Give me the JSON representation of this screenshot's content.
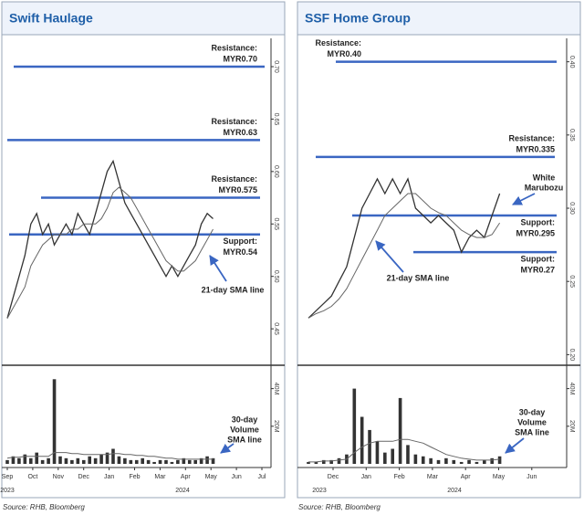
{
  "chart_data": [
    {
      "type": "line",
      "title": "Swift Haulage",
      "ylim": [
        0.417,
        0.727
      ],
      "yticks": [
        0.45,
        {
          "value": 0.5,
          "label": "0.50"
        },
        0.55,
        {
          "value": 0.6,
          "label": "0.60"
        },
        0.65,
        {
          "value": 0.7,
          "label": "0.70"
        }
      ],
      "vol_ylim": [
        0,
        50
      ],
      "vol_yticks": [
        {
          "value": 20,
          "label": "20M"
        },
        {
          "value": 40,
          "label": "40M"
        }
      ],
      "x_labels": [
        "Sep",
        "Oct",
        "Nov",
        "Dec",
        "Jan",
        "Feb",
        "Mar",
        "Apr",
        "May",
        "Jun",
        "Jul"
      ],
      "years": [
        "2023",
        "2024"
      ],
      "price": {
        "color": "#333333",
        "values": [
          0.46,
          0.48,
          0.5,
          0.52,
          0.55,
          0.56,
          0.54,
          0.55,
          0.53,
          0.54,
          0.55,
          0.54,
          0.56,
          0.55,
          0.54,
          0.56,
          0.58,
          0.6,
          0.61,
          0.59,
          0.57,
          0.56,
          0.55,
          0.54,
          0.53,
          0.52,
          0.51,
          0.5,
          0.51,
          0.5,
          0.51,
          0.52,
          0.53,
          0.55,
          0.56,
          0.555
        ]
      },
      "sma": {
        "color": "#666666",
        "values": [
          0.46,
          0.47,
          0.48,
          0.49,
          0.51,
          0.52,
          0.53,
          0.535,
          0.54,
          0.54,
          0.54,
          0.545,
          0.545,
          0.55,
          0.55,
          0.55,
          0.555,
          0.565,
          0.58,
          0.585,
          0.58,
          0.575,
          0.565,
          0.555,
          0.545,
          0.535,
          0.525,
          0.515,
          0.51,
          0.505,
          0.505,
          0.51,
          0.515,
          0.525,
          0.535,
          0.545
        ]
      },
      "volume": {
        "color": "#333333",
        "values": [
          2,
          4,
          3,
          5,
          3,
          6,
          2,
          3,
          45,
          4,
          3,
          2,
          3,
          2,
          4,
          3,
          5,
          6,
          8,
          4,
          3,
          2,
          2,
          3,
          2,
          1,
          2,
          2,
          1,
          2,
          3,
          2,
          2,
          3,
          4,
          3
        ]
      },
      "volume_sma": {
        "color": "#666666",
        "values": [
          3,
          3.5,
          3.5,
          4,
          4,
          4,
          4,
          4,
          6,
          6,
          6,
          5.5,
          5.5,
          5,
          5,
          5,
          5,
          5,
          5.5,
          5.5,
          5,
          5,
          4.5,
          4.5,
          4,
          4,
          3.5,
          3,
          3,
          2.5,
          2.5,
          2.5,
          2.5,
          2.5,
          2.5,
          2.5
        ]
      },
      "level_color": "#3a66c2",
      "levels": [
        {
          "label": "Resistance:",
          "value_label": "MYR0.70",
          "value": 0.7
        },
        {
          "label": "Resistance:",
          "value_label": "MYR0.63",
          "value": 0.63
        },
        {
          "label": "Resistance:",
          "value_label": "MYR0.575",
          "value": 0.575
        },
        {
          "label": "Support:",
          "value_label": "MYR0.54",
          "value": 0.54
        }
      ],
      "annotations": [
        {
          "lines": [
            "21-day SMA line"
          ]
        },
        {
          "lines": [
            "30-day",
            "Volume",
            "SMA line"
          ]
        }
      ],
      "source": "Source: RHB, Bloomberg"
    },
    {
      "type": "line",
      "title": "SSF Home Group",
      "ylim": [
        0.194,
        0.416
      ],
      "yticks": [
        {
          "value": 0.2,
          "label": "0.20"
        },
        0.25,
        {
          "value": 0.3,
          "label": "0.30"
        },
        0.35,
        {
          "value": 0.4,
          "label": "0.40"
        }
      ],
      "vol_ylim": [
        0,
        50
      ],
      "vol_yticks": [
        {
          "value": 20,
          "label": "20M"
        },
        {
          "value": 40,
          "label": "40M"
        }
      ],
      "x_labels": [
        "Dec",
        "Jan",
        "Feb",
        "Mar",
        "Apr",
        "May",
        "Jun"
      ],
      "years": [
        "2023",
        "2024"
      ],
      "price": {
        "color": "#333333",
        "values": [
          0.225,
          0.23,
          0.235,
          0.24,
          0.25,
          0.26,
          0.28,
          0.3,
          0.31,
          0.32,
          0.31,
          0.32,
          0.31,
          0.32,
          0.3,
          0.295,
          0.29,
          0.295,
          0.29,
          0.285,
          0.27,
          0.28,
          0.285,
          0.28,
          0.295,
          0.31
        ]
      },
      "sma": {
        "color": "#666666",
        "values": [
          0.225,
          0.228,
          0.23,
          0.233,
          0.238,
          0.245,
          0.255,
          0.265,
          0.275,
          0.285,
          0.295,
          0.3,
          0.305,
          0.31,
          0.31,
          0.305,
          0.3,
          0.297,
          0.295,
          0.29,
          0.285,
          0.282,
          0.28,
          0.28,
          0.282,
          0.29
        ]
      },
      "volume": {
        "color": "#333333",
        "values": [
          1,
          1,
          2,
          2,
          3,
          5,
          40,
          25,
          18,
          12,
          6,
          8,
          35,
          10,
          5,
          4,
          3,
          2,
          3,
          2,
          1,
          2,
          1,
          2,
          3,
          4
        ]
      },
      "volume_sma": {
        "color": "#666666",
        "values": [
          1,
          1,
          1.5,
          1.5,
          2,
          2.5,
          6,
          9,
          11,
          12,
          12,
          12,
          13,
          13,
          12,
          11,
          9,
          7,
          5,
          4,
          3,
          2.5,
          2,
          2,
          2,
          2.5
        ]
      },
      "level_color": "#3a66c2",
      "levels": [
        {
          "label": "Resistance:",
          "value_label": "MYR0.40",
          "value": 0.4
        },
        {
          "label": "Resistance:",
          "value_label": "MYR0.335",
          "value": 0.335
        },
        {
          "label": "Support:",
          "value_label": "MYR0.295",
          "value": 0.295
        },
        {
          "label": "Support:",
          "value_label": "MYR0.27",
          "value": 0.27
        }
      ],
      "annotations": [
        {
          "lines": [
            "21-day SMA line"
          ]
        },
        {
          "lines": [
            "30-day",
            "Volume",
            "SMA line"
          ]
        },
        {
          "lines": [
            "White",
            "Marubozu"
          ]
        }
      ],
      "source": "Source: RHB, Bloomberg"
    }
  ]
}
